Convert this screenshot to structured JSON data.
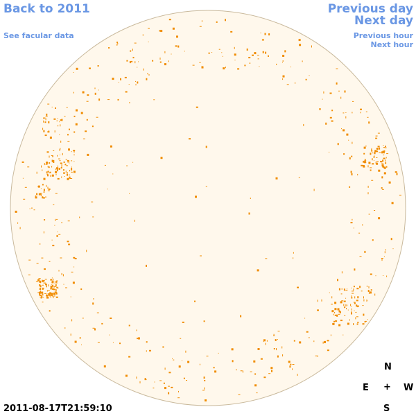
{
  "nav": {
    "back_label": "Back to 2011",
    "facular_label": "See facular data",
    "prev_day_label": "Previous day",
    "next_day_label": "Next day",
    "prev_hour_label": "Previous hour",
    "next_hour_label": "Next hour"
  },
  "timestamp": "2011-08-17T21:59:10",
  "compass": {
    "north": "N",
    "east": "E",
    "center": "+",
    "west": "W",
    "south": "S"
  },
  "colors": {
    "link": "#6a97e4",
    "disk_fill": "#fff8ec",
    "disk_edge": "#c9b99c",
    "facula": "#f08c00"
  }
}
